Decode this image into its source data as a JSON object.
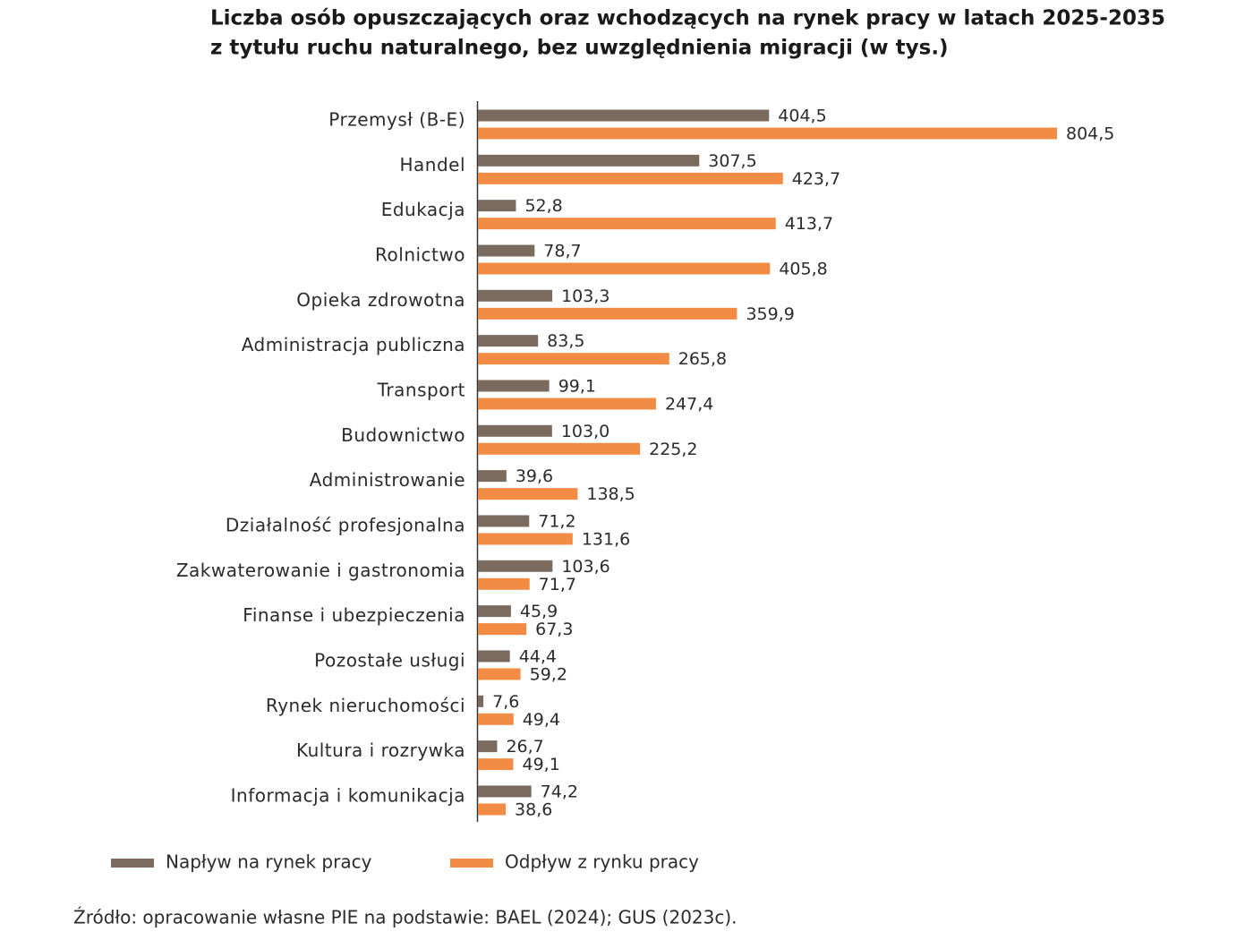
{
  "chart_data": {
    "type": "bar",
    "orientation": "horizontal",
    "title": [
      "Liczba osób opuszczających oraz wchodzących na rynek pracy w latach 2025-2035",
      "z tytułu ruchu naturalnego, bez uwzględnienia migracji (w tys.)"
    ],
    "categories": [
      "Przemysł (B-E)",
      "Handel",
      "Edukacja",
      "Rolnictwo",
      "Opieka zdrowotna",
      "Administracja publiczna",
      "Transport",
      "Budownictwo",
      "Administrowanie",
      "Działalność profesjonalna",
      "Zakwaterowanie i gastronomia",
      "Finanse i ubezpieczenia",
      "Pozostałe usługi",
      "Rynek nieruchomości",
      "Kultura i rozrywka",
      "Informacja i komunikacja"
    ],
    "series": [
      {
        "name": "Napływ na rynek pracy",
        "color": "#7b6b5f",
        "values": [
          404.5,
          307.5,
          52.8,
          78.7,
          103.3,
          83.5,
          99.1,
          103.0,
          39.6,
          71.2,
          103.6,
          45.9,
          44.4,
          7.6,
          26.7,
          74.2
        ],
        "value_labels": [
          "404,5",
          "307,5",
          "52,8",
          "78,7",
          "103,3",
          "83,5",
          "99,1",
          "103,0",
          "39,6",
          "71,2",
          "103,6",
          "45,9",
          "44,4",
          "7,6",
          "26,7",
          "74,2"
        ]
      },
      {
        "name": "Odpływ z rynku pracy",
        "color": "#f28c45",
        "values": [
          804.5,
          423.7,
          413.7,
          405.8,
          359.9,
          265.8,
          247.4,
          225.2,
          138.5,
          131.6,
          71.7,
          67.3,
          59.2,
          49.4,
          49.1,
          38.6
        ],
        "value_labels": [
          "804,5",
          "423,7",
          "413,7",
          "405,8",
          "359,9",
          "265,8",
          "247,4",
          "225,2",
          "138,5",
          "131,6",
          "71,7",
          "67,3",
          "59,2",
          "49,4",
          "49,1",
          "38,6"
        ]
      }
    ],
    "source": "Źródło: opracowanie własne PIE na podstawie: BAEL (2024); GUS (2023c)."
  }
}
